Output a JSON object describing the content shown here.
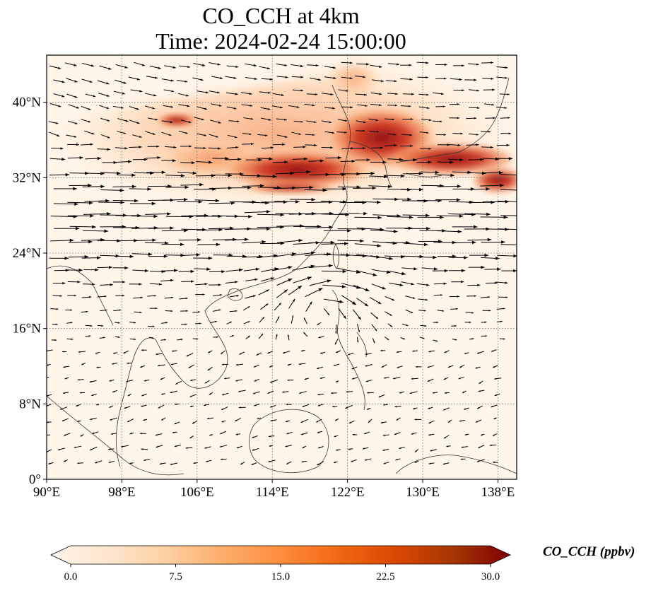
{
  "title": {
    "line1": "CO_CCH at 4km",
    "line2": "Time: 2024-02-24 15:00:00"
  },
  "map": {
    "extent": {
      "lon_min": 90,
      "lon_max": 140,
      "lat_min": 0,
      "lat_max": 45
    },
    "lon_ticks": [
      {
        "value": 90,
        "label": "90°E"
      },
      {
        "value": 98,
        "label": "98°E"
      },
      {
        "value": 106,
        "label": "106°E"
      },
      {
        "value": 114,
        "label": "114°E"
      },
      {
        "value": 122,
        "label": "122°E"
      },
      {
        "value": 130,
        "label": "130°E"
      },
      {
        "value": 138,
        "label": "138°E"
      }
    ],
    "lat_ticks": [
      {
        "value": 0,
        "label": "0°"
      },
      {
        "value": 8,
        "label": "8°N"
      },
      {
        "value": 16,
        "label": "16°N"
      },
      {
        "value": 24,
        "label": "24°N"
      },
      {
        "value": 32,
        "label": "32°N"
      },
      {
        "value": 40,
        "label": "40°N"
      }
    ],
    "gridlines": true,
    "field": "CO_CCH",
    "wind_vectors": true,
    "colors": {
      "background": "#fff5e9",
      "low": "#fde0b8",
      "mid": "#f4874f",
      "high": "#c8250f",
      "max": "#8c0a08"
    }
  },
  "colorbar": {
    "label": "CO_CCH (ppbv)",
    "min": 0,
    "max": 30,
    "extend": "both",
    "ticks": [
      {
        "value": 0,
        "label": "0.0"
      },
      {
        "value": 7.5,
        "label": "7.5"
      },
      {
        "value": 15,
        "label": "15.0"
      },
      {
        "value": 22.5,
        "label": "22.5"
      },
      {
        "value": 30,
        "label": "30.0"
      }
    ],
    "stops": [
      "#fff5eb",
      "#fee6ce",
      "#fdd0a2",
      "#fdae6b",
      "#fd8d3c",
      "#f16913",
      "#d94801",
      "#a63603",
      "#7f0000"
    ]
  }
}
